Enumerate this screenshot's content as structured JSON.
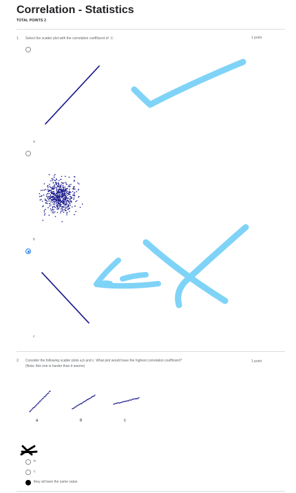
{
  "form": {
    "title": "Correlation - Statistics",
    "total_points": "TOTAL POINTS 2"
  },
  "question1": {
    "number": "1.",
    "text": "Select the scatter plot with the correlation coefficient of -1:",
    "points": "1 point",
    "options": [
      {
        "letter": "a",
        "selected": false
      },
      {
        "letter": "b",
        "selected": false
      },
      {
        "letter": "c",
        "selected": true
      }
    ]
  },
  "question2": {
    "number": "2.",
    "text_line1": "Consider the following scatter plots a,b and c. What plot would have the highest correlation coefficient?",
    "text_line2": "(Note: this one is harder than it seems)",
    "points": "1 point",
    "plot_labels": [
      "a",
      "b",
      "c"
    ],
    "options": [
      {
        "label": "b",
        "selected": false
      },
      {
        "label": "c",
        "selected": false
      },
      {
        "label": "they all have the same value",
        "selected": true
      }
    ]
  },
  "colors": {
    "dots": "#1a1a8c",
    "annotation_blue": "#7fd3f7",
    "annotation_black": "#000000",
    "radio_selected": "#1a73e8"
  },
  "icons": {
    "checkmark": "hand-drawn-checkmark",
    "x_mark": "hand-drawn-x-mark",
    "arrow": "hand-drawn-arrow",
    "black_x": "hand-drawn-black-x"
  }
}
